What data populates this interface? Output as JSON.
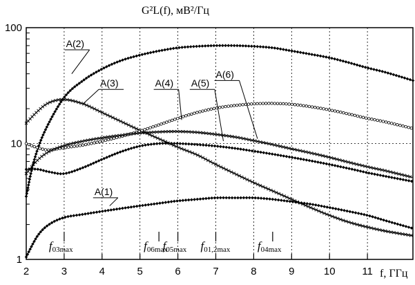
{
  "chart_data": {
    "type": "line",
    "title": "",
    "ylabel": "G²L(f), мВ²/Гц",
    "xlabel": "f, ГГц",
    "xlim": [
      2,
      12.2
    ],
    "ylim": [
      1,
      100
    ],
    "yscale": "log",
    "grid": true,
    "legend": "none",
    "x_ticks": [
      "2",
      "3",
      "4",
      "5",
      "6",
      "7",
      "8",
      "9",
      "10",
      "11"
    ],
    "y_ticks": [
      "1",
      "10",
      "100"
    ],
    "series": [
      {
        "name": "A(1)",
        "marker": "diamond",
        "label_point": {
          "x": 4.2,
          "y": 2.9
        },
        "x": [
          2,
          2.3,
          2.6,
          3,
          3.5,
          4,
          4.5,
          5,
          5.5,
          6,
          6.5,
          7,
          7.5,
          8,
          8.5,
          9,
          9.5,
          10,
          10.5,
          11,
          11.5,
          12.2
        ],
        "y": [
          1.05,
          1.6,
          2.0,
          2.3,
          2.45,
          2.6,
          2.75,
          2.9,
          3.05,
          3.2,
          3.3,
          3.4,
          3.4,
          3.4,
          3.3,
          3.15,
          3.0,
          2.8,
          2.6,
          2.4,
          2.15,
          1.85
        ]
      },
      {
        "name": "A(2)",
        "marker": "diamond",
        "label_point": {
          "x": 3.2,
          "y": 40
        },
        "x": [
          2,
          2.2,
          2.5,
          3,
          3.5,
          4,
          4.5,
          5,
          5.5,
          6,
          6.5,
          7,
          7.5,
          8,
          8.5,
          9,
          9.5,
          10,
          10.5,
          11,
          11.5,
          12.2
        ],
        "y": [
          3.5,
          7,
          13,
          25,
          35,
          44,
          52,
          58,
          63,
          67,
          69,
          70,
          70,
          69,
          67,
          63,
          59,
          55,
          50,
          45,
          41,
          35
        ]
      },
      {
        "name": "A(3)",
        "marker": "cross",
        "label_point": {
          "x": 3.5,
          "y": 22
        },
        "x": [
          2,
          2.3,
          2.6,
          3,
          3.5,
          4,
          4.5,
          5,
          5.5,
          6,
          6.5,
          7,
          7.5,
          8,
          8.5,
          9,
          9.5,
          10,
          10.5,
          11,
          11.5,
          12.2
        ],
        "y": [
          15,
          19,
          22.5,
          24,
          22,
          18.5,
          15.5,
          13,
          11,
          9.3,
          8.0,
          6.6,
          5.5,
          4.6,
          3.9,
          3.3,
          2.8,
          2.4,
          2.1,
          1.9,
          1.75,
          1.6
        ]
      },
      {
        "name": "A(4)",
        "marker": "circle",
        "label_point": {
          "x": 6.1,
          "y": 16
        },
        "x": [
          2,
          2.3,
          2.6,
          3,
          3.5,
          4,
          4.5,
          5,
          5.5,
          6,
          6.5,
          7,
          7.5,
          8,
          8.5,
          9,
          9.5,
          10,
          10.5,
          11,
          11.5,
          12.2
        ],
        "y": [
          10,
          9.2,
          8.8,
          9.2,
          9.7,
          10.5,
          11.5,
          12.8,
          14.5,
          16.5,
          18.5,
          20.2,
          21.3,
          22,
          22.2,
          21.8,
          20.8,
          19.5,
          18,
          16.5,
          15.3,
          13.5
        ]
      },
      {
        "name": "A(5)",
        "marker": "diamond",
        "label_point": {
          "x": 7.2,
          "y": 10.5
        },
        "x": [
          2,
          2.3,
          2.6,
          3,
          3.5,
          4,
          4.5,
          5,
          5.5,
          6,
          6.5,
          7,
          7.5,
          8,
          8.5,
          9,
          9.5,
          10,
          10.5,
          11,
          11.5,
          12.2
        ],
        "y": [
          6,
          6.0,
          5.7,
          5.5,
          6.2,
          7.3,
          8.5,
          9.5,
          10,
          10,
          9.8,
          9.5,
          9.1,
          8.6,
          8.1,
          7.6,
          7.1,
          6.6,
          6.1,
          5.6,
          5.2,
          4.7
        ]
      },
      {
        "name": "A(6)",
        "marker": "cross",
        "label_point": {
          "x": 8.1,
          "y": 11
        },
        "x": [
          2,
          2.3,
          2.6,
          3,
          3.5,
          4,
          4.5,
          5,
          5.5,
          6,
          6.5,
          7,
          7.5,
          8,
          8.5,
          9,
          9.5,
          10,
          10.5,
          11,
          11.5,
          12.2
        ],
        "y": [
          5.5,
          7.2,
          8.5,
          9.6,
          10.5,
          11.2,
          11.8,
          12.3,
          12.6,
          12.7,
          12.5,
          12.0,
          11.4,
          10.6,
          9.8,
          9.0,
          8.3,
          7.6,
          6.9,
          6.3,
          5.8,
          5.1
        ]
      }
    ],
    "curve_labels": [
      {
        "text": "A(1)",
        "x": 3.8,
        "y": 3.6
      },
      {
        "text": "A(2)",
        "x": 3.05,
        "y": 68
      },
      {
        "text": "A(3)",
        "x": 3.95,
        "y": 31
      },
      {
        "text": "A(4)",
        "x": 5.4,
        "y": 31
      },
      {
        "text": "A(5)",
        "x": 6.35,
        "y": 31
      },
      {
        "text": "A(6)",
        "x": 7.0,
        "y": 37
      }
    ],
    "freq_markers": [
      {
        "label": "f03max",
        "base": "f",
        "sub": "03max",
        "x": 3.0
      },
      {
        "label": "f06max",
        "base": "f",
        "sub": "06max",
        "x": 5.5
      },
      {
        "label": "f05max",
        "base": "f",
        "sub": "05max",
        "x": 6.0
      },
      {
        "label": "f01,2max",
        "base": "f",
        "sub": "01,2max",
        "x": 7.0
      },
      {
        "label": "f04max",
        "base": "f",
        "sub": "04max",
        "x": 8.5
      }
    ]
  }
}
